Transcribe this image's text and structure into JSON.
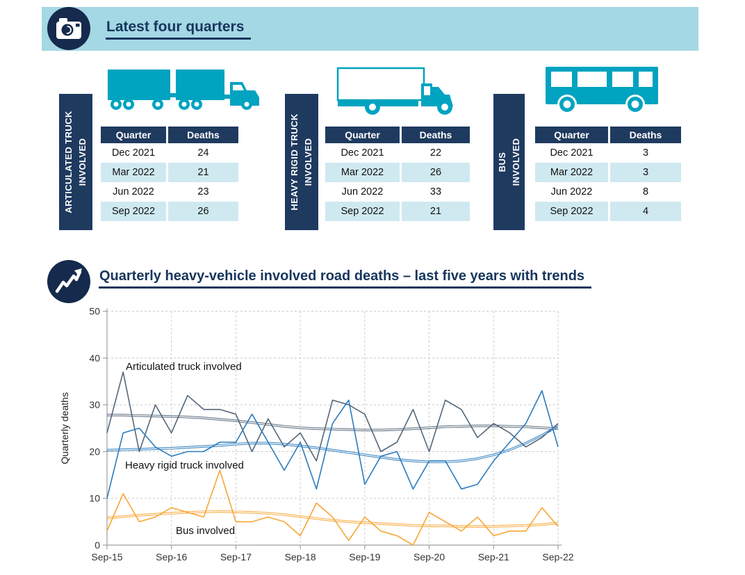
{
  "header": {
    "title": "Latest four quarters",
    "banner_color": "#a4d8e4",
    "badge_color": "#152a4c",
    "title_color": "#17365d"
  },
  "summary_tables": {
    "columns": [
      "Quarter",
      "Deaths"
    ],
    "colors": {
      "header_bg": "#1f3a5f",
      "alt_row": "#cfe9f1",
      "vehicle_teal": "#00a3c0"
    },
    "tables": [
      {
        "label_lines": [
          "ARTICULATED TRUCK",
          "INVOLVED"
        ],
        "icon": "articulated-truck-icon",
        "rows": [
          {
            "quarter": "Dec 2021",
            "deaths": "24"
          },
          {
            "quarter": "Mar 2022",
            "deaths": "21"
          },
          {
            "quarter": "Jun 2022",
            "deaths": "23"
          },
          {
            "quarter": "Sep 2022",
            "deaths": "26"
          }
        ]
      },
      {
        "label_lines": [
          "HEAVY RIGID TRUCK",
          "INVOLVED"
        ],
        "icon": "rigid-truck-icon",
        "rows": [
          {
            "quarter": "Dec 2021",
            "deaths": "22"
          },
          {
            "quarter": "Mar 2022",
            "deaths": "26"
          },
          {
            "quarter": "Jun 2022",
            "deaths": "33"
          },
          {
            "quarter": "Sep 2022",
            "deaths": "21"
          }
        ]
      },
      {
        "label_lines": [
          "BUS",
          "INVOLVED"
        ],
        "icon": "bus-icon",
        "rows": [
          {
            "quarter": "Dec 2021",
            "deaths": "3"
          },
          {
            "quarter": "Mar 2022",
            "deaths": "3"
          },
          {
            "quarter": "Jun 2022",
            "deaths": "8"
          },
          {
            "quarter": "Sep 2022",
            "deaths": "4"
          }
        ]
      }
    ]
  },
  "chart_section": {
    "title": "Quarterly heavy-vehicle involved road deaths – last five years with trends"
  },
  "chart_data": {
    "type": "line",
    "title": "Quarterly heavy-vehicle involved road deaths – last five years with trends",
    "xlabel": "",
    "ylabel": "Quarterly deaths",
    "ylim": [
      0,
      50
    ],
    "y_ticks": [
      0,
      10,
      20,
      30,
      40,
      50
    ],
    "grid": "dashed",
    "legend_position": "inline-annotations",
    "x_tick_labels": [
      "Sep-15",
      "Sep-16",
      "Sep-17",
      "Sep-18",
      "Sep-19",
      "Sep-20",
      "Sep-21",
      "Sep-22"
    ],
    "quarters": [
      "Sep-15",
      "Dec-15",
      "Mar-16",
      "Jun-16",
      "Sep-16",
      "Dec-16",
      "Mar-17",
      "Jun-17",
      "Sep-17",
      "Dec-17",
      "Mar-18",
      "Jun-18",
      "Sep-18",
      "Dec-18",
      "Mar-19",
      "Jun-19",
      "Sep-19",
      "Dec-19",
      "Mar-20",
      "Jun-20",
      "Sep-20",
      "Dec-20",
      "Mar-21",
      "Jun-21",
      "Sep-21",
      "Dec-21",
      "Mar-22",
      "Jun-22",
      "Sep-22"
    ],
    "series": [
      {
        "name": "Articulated truck involved",
        "color": "#54677a",
        "values": [
          24,
          37,
          20,
          30,
          24,
          32,
          29,
          29,
          28,
          20,
          27,
          21,
          24,
          18,
          31,
          30,
          28,
          20,
          22,
          29,
          20,
          31,
          29,
          23,
          26,
          24,
          21,
          23,
          26
        ],
        "trend": [
          27.8,
          27.8,
          27.7,
          27.6,
          27.5,
          27.4,
          27.2,
          26.9,
          26.6,
          26.2,
          25.8,
          25.4,
          25.1,
          24.9,
          24.8,
          24.7,
          24.6,
          24.6,
          24.7,
          24.9,
          25.1,
          25.3,
          25.4,
          25.5,
          25.5,
          25.4,
          25.3,
          25.1,
          24.9
        ]
      },
      {
        "name": "Heavy rigid truck involved",
        "color": "#2b7bbd",
        "values": [
          10,
          24,
          25,
          21,
          19,
          20,
          20,
          22,
          22,
          28,
          22,
          16,
          22,
          12,
          26,
          31,
          13,
          19,
          20,
          12,
          18,
          18,
          12,
          13,
          18,
          22,
          26,
          33,
          21
        ],
        "trend": [
          20.3,
          20.4,
          20.5,
          20.6,
          20.7,
          20.9,
          21.1,
          21.3,
          21.6,
          21.8,
          21.8,
          21.6,
          21.2,
          20.8,
          20.3,
          19.8,
          19.3,
          18.8,
          18.3,
          18.0,
          17.8,
          17.8,
          18.0,
          18.5,
          19.3,
          20.4,
          21.8,
          23.5,
          25.4
        ]
      },
      {
        "name": "Bus involved",
        "color": "#f7a636",
        "values": [
          3,
          11,
          5,
          6,
          8,
          7,
          6,
          16,
          5,
          5,
          6,
          5,
          2,
          9,
          6,
          1,
          6,
          3,
          2,
          0,
          7,
          5,
          3,
          6,
          2,
          3,
          3,
          8,
          4
        ],
        "trend": [
          5.8,
          6.1,
          6.4,
          6.6,
          6.8,
          7.0,
          7.1,
          7.2,
          7.1,
          7.0,
          6.8,
          6.5,
          6.1,
          5.7,
          5.3,
          5.0,
          4.8,
          4.6,
          4.4,
          4.2,
          4.1,
          4.1,
          4.0,
          4.0,
          4.0,
          4.1,
          4.2,
          4.4,
          4.7
        ]
      }
    ]
  }
}
